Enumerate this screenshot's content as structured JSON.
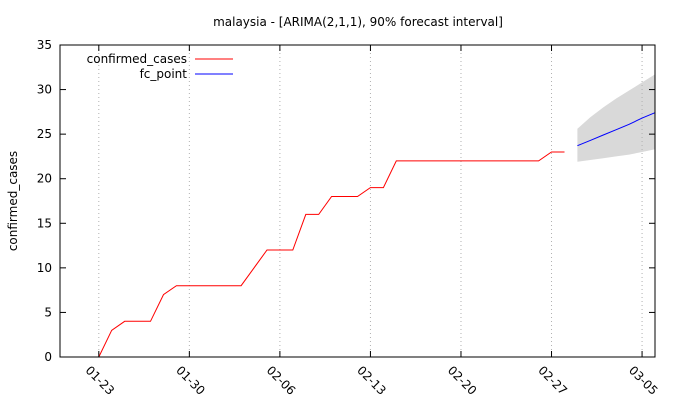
{
  "chart_data": {
    "type": "line",
    "title": "malaysia -  [ARIMA(2,1,1), 90% forecast interval]",
    "xlabel": "",
    "ylabel": "confirmed_cases",
    "ylim": [
      0,
      35
    ],
    "yticks": [
      0,
      5,
      10,
      15,
      20,
      25,
      30,
      35
    ],
    "xlim": [
      "01-20",
      "03-06"
    ],
    "xticks": [
      "01-23",
      "01-30",
      "02-06",
      "02-13",
      "02-20",
      "02-27",
      "03-05"
    ],
    "grid": "vertical-dotted",
    "legend": "top-left",
    "series": [
      {
        "name": "confirmed_cases",
        "color": "#ff0000",
        "points": [
          [
            "01-23",
            0
          ],
          [
            "01-24",
            3
          ],
          [
            "01-25",
            4
          ],
          [
            "01-26",
            4
          ],
          [
            "01-27",
            4
          ],
          [
            "01-28",
            7
          ],
          [
            "01-29",
            8
          ],
          [
            "01-30",
            8
          ],
          [
            "01-31",
            8
          ],
          [
            "02-01",
            8
          ],
          [
            "02-02",
            8
          ],
          [
            "02-03",
            8
          ],
          [
            "02-04",
            10
          ],
          [
            "02-05",
            12
          ],
          [
            "02-06",
            12
          ],
          [
            "02-07",
            12
          ],
          [
            "02-08",
            16
          ],
          [
            "02-09",
            16
          ],
          [
            "02-10",
            18
          ],
          [
            "02-11",
            18
          ],
          [
            "02-12",
            18
          ],
          [
            "02-13",
            19
          ],
          [
            "02-14",
            19
          ],
          [
            "02-15",
            22
          ],
          [
            "02-16",
            22
          ],
          [
            "02-17",
            22
          ],
          [
            "02-18",
            22
          ],
          [
            "02-19",
            22
          ],
          [
            "02-20",
            22
          ],
          [
            "02-21",
            22
          ],
          [
            "02-22",
            22
          ],
          [
            "02-23",
            22
          ],
          [
            "02-24",
            22
          ],
          [
            "02-25",
            22
          ],
          [
            "02-26",
            22
          ],
          [
            "02-27",
            23
          ],
          [
            "02-28",
            23
          ]
        ]
      },
      {
        "name": "fc_point",
        "color": "#0000ff",
        "points": [
          [
            "02-29",
            23.7
          ],
          [
            "03-01",
            24.3
          ],
          [
            "03-02",
            24.9
          ],
          [
            "03-03",
            25.5
          ],
          [
            "03-04",
            26.1
          ],
          [
            "03-05",
            26.8
          ],
          [
            "03-06",
            27.4
          ]
        ]
      }
    ],
    "forecast_interval": {
      "color": "#d9d9d9",
      "x": [
        "02-29",
        "03-01",
        "03-02",
        "03-03",
        "03-04",
        "03-05",
        "03-06"
      ],
      "lower": [
        21.9,
        22.1,
        22.3,
        22.5,
        22.7,
        23.0,
        23.3
      ],
      "upper": [
        25.6,
        26.9,
        28.0,
        29.0,
        29.9,
        30.8,
        31.7
      ]
    }
  }
}
